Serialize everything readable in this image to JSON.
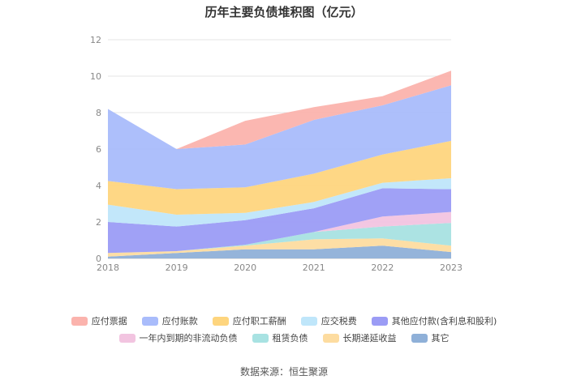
{
  "title": "历年主要负债堆积图（亿元）",
  "source": "数据来源：恒生聚源",
  "chart_data": {
    "type": "area",
    "stacked": true,
    "categories": [
      "2018",
      "2019",
      "2020",
      "2021",
      "2022",
      "2023"
    ],
    "ylim": [
      0,
      12
    ],
    "yticks": [
      "0",
      "2",
      "4",
      "6",
      "8",
      "10",
      "12"
    ],
    "grid": true,
    "legend_position": "bottom",
    "series": [
      {
        "name": "其它",
        "color": "#8fb0d8",
        "values": [
          0.1,
          0.3,
          0.5,
          0.5,
          0.7,
          0.35
        ]
      },
      {
        "name": "长期递延收益",
        "color": "#fddca0",
        "values": [
          0.2,
          0.1,
          0.2,
          0.55,
          0.4,
          0.35
        ]
      },
      {
        "name": "租赁负债",
        "color": "#a8e2e2",
        "values": [
          0,
          0,
          0.05,
          0.4,
          0.65,
          1.25
        ]
      },
      {
        "name": "一年内到期的非流动负债",
        "color": "#f2c4e0",
        "values": [
          0,
          0,
          0,
          0,
          0.55,
          0.6
        ]
      },
      {
        "name": "其他应付款(含利息和股利)",
        "color": "#9b9cf5",
        "values": [
          1.7,
          1.35,
          1.35,
          1.3,
          1.55,
          1.25
        ]
      },
      {
        "name": "应交税费",
        "color": "#bfe6fa",
        "values": [
          0.95,
          0.65,
          0.4,
          0.35,
          0.3,
          0.6
        ]
      },
      {
        "name": "应付职工薪酬",
        "color": "#fed57e",
        "values": [
          1.3,
          1.4,
          1.4,
          1.55,
          1.55,
          2.05
        ]
      },
      {
        "name": "应付账款",
        "color": "#a9bcfb",
        "values": [
          3.95,
          2.2,
          2.35,
          2.95,
          2.7,
          3.05
        ]
      },
      {
        "name": "应付票据",
        "color": "#fbb3ad",
        "values": [
          0,
          0,
          1.3,
          0.7,
          0.5,
          0.8
        ]
      }
    ],
    "legend_order": [
      "应付票据",
      "应付账款",
      "应付职工薪酬",
      "应交税费",
      "其他应付款(含利息和股利)",
      "一年内到期的非流动负债",
      "租赁负债",
      "长期递延收益",
      "其它"
    ]
  }
}
